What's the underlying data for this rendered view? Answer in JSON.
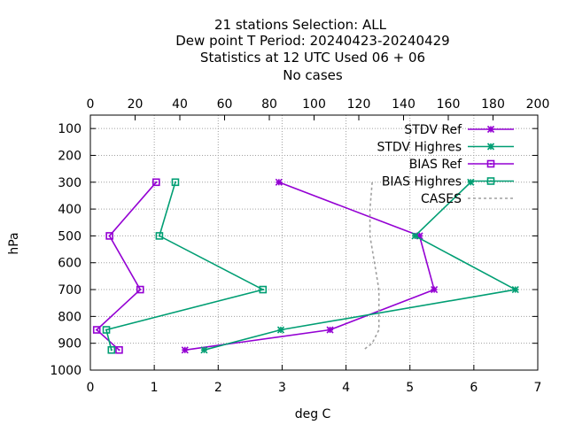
{
  "title_lines": [
    "21 stations Selection: ALL",
    "Dew point T  Period: 20240423-20240429",
    "Statistics at 12 UTC  Used  06 + 06",
    "No cases"
  ],
  "colors": {
    "ref": "#9400d3",
    "highres": "#009e73",
    "cases": "#a0a0a0",
    "grid": "#a0a0a0",
    "axis": "#000000"
  },
  "chart_data": {
    "type": "line",
    "xlabel": "deg C",
    "ylabel": "hPa",
    "x_bottom": {
      "range": [
        0,
        7
      ],
      "ticks": [
        0,
        1,
        2,
        3,
        4,
        5,
        6,
        7
      ]
    },
    "x_top": {
      "range": [
        0,
        200
      ],
      "ticks": [
        0,
        20,
        40,
        60,
        80,
        100,
        120,
        140,
        160,
        180,
        200
      ]
    },
    "y": {
      "range": [
        1000,
        50
      ],
      "reversed": true,
      "ticks": [
        100,
        200,
        300,
        400,
        500,
        600,
        700,
        800,
        900,
        1000
      ]
    },
    "grid": true,
    "legend_position": "top-right",
    "series": [
      {
        "name": "STDV Ref",
        "color": "ref",
        "marker": "star",
        "axis": "bottom",
        "points": [
          [
            2.95,
            300
          ],
          [
            5.15,
            500
          ],
          [
            5.38,
            700
          ],
          [
            3.75,
            850
          ],
          [
            1.48,
            925
          ]
        ]
      },
      {
        "name": "STDV Highres",
        "color": "highres",
        "marker": "star",
        "axis": "bottom",
        "points": [
          [
            5.95,
            300
          ],
          [
            5.08,
            500
          ],
          [
            6.65,
            700
          ],
          [
            2.98,
            850
          ],
          [
            1.78,
            925
          ]
        ]
      },
      {
        "name": "BIAS Ref",
        "color": "ref",
        "marker": "square",
        "axis": "bottom",
        "points": [
          [
            1.03,
            300
          ],
          [
            0.3,
            500
          ],
          [
            0.78,
            700
          ],
          [
            0.1,
            850
          ],
          [
            0.45,
            925
          ]
        ]
      },
      {
        "name": "BIAS Highres",
        "color": "highres",
        "marker": "square",
        "axis": "bottom",
        "points": [
          [
            1.33,
            300
          ],
          [
            1.08,
            500
          ],
          [
            2.7,
            700
          ],
          [
            0.25,
            850
          ],
          [
            0.33,
            925
          ]
        ]
      },
      {
        "name": "CASES",
        "color": "cases",
        "marker": "none",
        "dashed": true,
        "axis": "top",
        "points": [
          [
            126,
            300
          ],
          [
            125,
            400
          ],
          [
            125,
            500
          ],
          [
            127,
            600
          ],
          [
            129,
            700
          ],
          [
            129,
            800
          ],
          [
            129,
            850
          ],
          [
            126,
            900
          ],
          [
            122,
            925
          ]
        ]
      }
    ]
  }
}
